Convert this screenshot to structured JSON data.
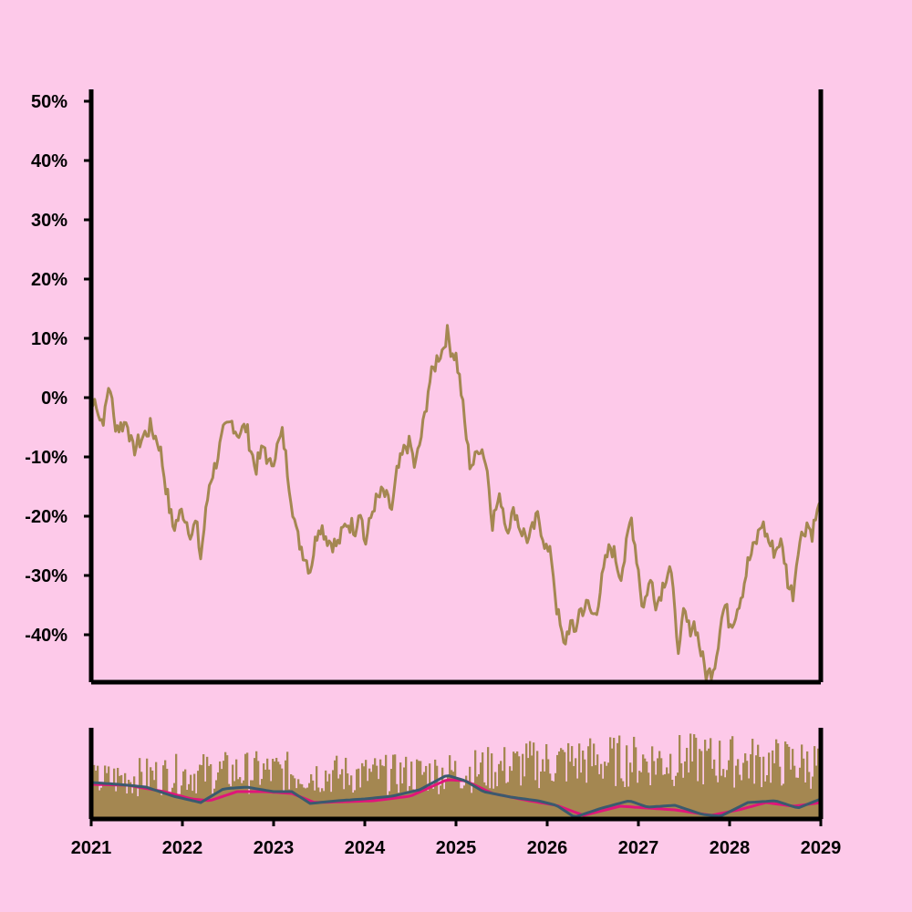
{
  "colors": {
    "background": "#fdc9e9",
    "price_line": "#a48751",
    "volume_bars": "#a48751",
    "ma_fast": "#3a5a6e",
    "ma_slow": "#e0157a",
    "axis": "#000000"
  },
  "chart_data": [
    {
      "type": "line",
      "panel": "main",
      "title": "",
      "xlabel": "",
      "ylabel": "",
      "x_ticks": [
        "2021",
        "2022",
        "2023",
        "2024",
        "2025",
        "2026",
        "2027",
        "2028",
        "2029"
      ],
      "y_ticks": [
        "50%",
        "40%",
        "30%",
        "20%",
        "10%",
        "0%",
        "-10%",
        "-20%",
        "-30%",
        "-40%"
      ],
      "xlim": [
        2021,
        2029
      ],
      "ylim": [
        -48,
        52
      ],
      "series": [
        {
          "values": [
            {
              "x": 2021.0,
              "y": -2
            },
            {
              "x": 2021.05,
              "y": 0
            },
            {
              "x": 2021.1,
              "y": -4
            },
            {
              "x": 2021.15,
              "y": -3
            },
            {
              "x": 2021.2,
              "y": 3
            },
            {
              "x": 2021.25,
              "y": -4
            },
            {
              "x": 2021.3,
              "y": -5
            },
            {
              "x": 2021.4,
              "y": -4
            },
            {
              "x": 2021.45,
              "y": -9
            },
            {
              "x": 2021.55,
              "y": -7
            },
            {
              "x": 2021.65,
              "y": -5
            },
            {
              "x": 2021.75,
              "y": -8
            },
            {
              "x": 2021.85,
              "y": -18
            },
            {
              "x": 2021.9,
              "y": -22
            },
            {
              "x": 2022.0,
              "y": -19
            },
            {
              "x": 2022.1,
              "y": -23
            },
            {
              "x": 2022.15,
              "y": -21
            },
            {
              "x": 2022.2,
              "y": -27
            },
            {
              "x": 2022.3,
              "y": -14
            },
            {
              "x": 2022.35,
              "y": -12
            },
            {
              "x": 2022.45,
              "y": -6
            },
            {
              "x": 2022.55,
              "y": -4
            },
            {
              "x": 2022.6,
              "y": -6
            },
            {
              "x": 2022.7,
              "y": -5
            },
            {
              "x": 2022.8,
              "y": -12
            },
            {
              "x": 2022.9,
              "y": -8
            },
            {
              "x": 2022.95,
              "y": -12
            },
            {
              "x": 2023.05,
              "y": -8
            },
            {
              "x": 2023.1,
              "y": -6
            },
            {
              "x": 2023.15,
              "y": -12
            },
            {
              "x": 2023.25,
              "y": -23
            },
            {
              "x": 2023.3,
              "y": -25
            },
            {
              "x": 2023.4,
              "y": -29
            },
            {
              "x": 2023.5,
              "y": -21
            },
            {
              "x": 2023.6,
              "y": -24
            },
            {
              "x": 2023.7,
              "y": -25
            },
            {
              "x": 2023.8,
              "y": -21
            },
            {
              "x": 2023.9,
              "y": -22
            },
            {
              "x": 2023.95,
              "y": -18
            },
            {
              "x": 2024.0,
              "y": -25
            },
            {
              "x": 2024.1,
              "y": -18
            },
            {
              "x": 2024.2,
              "y": -16
            },
            {
              "x": 2024.3,
              "y": -19
            },
            {
              "x": 2024.35,
              "y": -13
            },
            {
              "x": 2024.45,
              "y": -8
            },
            {
              "x": 2024.5,
              "y": -8
            },
            {
              "x": 2024.55,
              "y": -12
            },
            {
              "x": 2024.65,
              "y": -4
            },
            {
              "x": 2024.7,
              "y": 2
            },
            {
              "x": 2024.8,
              "y": 7
            },
            {
              "x": 2024.85,
              "y": 8
            },
            {
              "x": 2024.9,
              "y": 11
            },
            {
              "x": 2024.95,
              "y": 8
            },
            {
              "x": 2025.0,
              "y": 7
            },
            {
              "x": 2025.05,
              "y": 2
            },
            {
              "x": 2025.1,
              "y": -5
            },
            {
              "x": 2025.15,
              "y": -11
            },
            {
              "x": 2025.2,
              "y": -11
            },
            {
              "x": 2025.25,
              "y": -8
            },
            {
              "x": 2025.3,
              "y": -9
            },
            {
              "x": 2025.35,
              "y": -13
            },
            {
              "x": 2025.4,
              "y": -21
            },
            {
              "x": 2025.45,
              "y": -18
            },
            {
              "x": 2025.5,
              "y": -17
            },
            {
              "x": 2025.55,
              "y": -22
            },
            {
              "x": 2025.65,
              "y": -19
            },
            {
              "x": 2025.7,
              "y": -22
            },
            {
              "x": 2025.8,
              "y": -24
            },
            {
              "x": 2025.9,
              "y": -20
            },
            {
              "x": 2026.0,
              "y": -26
            },
            {
              "x": 2026.05,
              "y": -27
            },
            {
              "x": 2026.1,
              "y": -35
            },
            {
              "x": 2026.18,
              "y": -42
            },
            {
              "x": 2026.25,
              "y": -38
            },
            {
              "x": 2026.3,
              "y": -40
            },
            {
              "x": 2026.35,
              "y": -36
            },
            {
              "x": 2026.45,
              "y": -35
            },
            {
              "x": 2026.5,
              "y": -37
            },
            {
              "x": 2026.55,
              "y": -35
            },
            {
              "x": 2026.65,
              "y": -27
            },
            {
              "x": 2026.7,
              "y": -25
            },
            {
              "x": 2026.75,
              "y": -27
            },
            {
              "x": 2026.8,
              "y": -30
            },
            {
              "x": 2026.85,
              "y": -27
            },
            {
              "x": 2026.92,
              "y": -20
            },
            {
              "x": 2027.0,
              "y": -29
            },
            {
              "x": 2027.05,
              "y": -36
            },
            {
              "x": 2027.1,
              "y": -32
            },
            {
              "x": 2027.15,
              "y": -31
            },
            {
              "x": 2027.2,
              "y": -35
            },
            {
              "x": 2027.3,
              "y": -30
            },
            {
              "x": 2027.35,
              "y": -28
            },
            {
              "x": 2027.4,
              "y": -37
            },
            {
              "x": 2027.45,
              "y": -43
            },
            {
              "x": 2027.5,
              "y": -36
            },
            {
              "x": 2027.55,
              "y": -39
            },
            {
              "x": 2027.62,
              "y": -38
            },
            {
              "x": 2027.7,
              "y": -44
            },
            {
              "x": 2027.75,
              "y": -47
            },
            {
              "x": 2027.8,
              "y": -46
            },
            {
              "x": 2027.85,
              "y": -44
            },
            {
              "x": 2027.9,
              "y": -38
            },
            {
              "x": 2027.95,
              "y": -35
            },
            {
              "x": 2028.0,
              "y": -38
            },
            {
              "x": 2028.05,
              "y": -37
            },
            {
              "x": 2028.15,
              "y": -32
            },
            {
              "x": 2028.2,
              "y": -28
            },
            {
              "x": 2028.3,
              "y": -24
            },
            {
              "x": 2028.35,
              "y": -21
            },
            {
              "x": 2028.4,
              "y": -23
            },
            {
              "x": 2028.45,
              "y": -25
            },
            {
              "x": 2028.5,
              "y": -26
            },
            {
              "x": 2028.55,
              "y": -24
            },
            {
              "x": 2028.6,
              "y": -27
            },
            {
              "x": 2028.65,
              "y": -32
            },
            {
              "x": 2028.7,
              "y": -33
            },
            {
              "x": 2028.75,
              "y": -25
            },
            {
              "x": 2028.8,
              "y": -23
            },
            {
              "x": 2028.85,
              "y": -21
            },
            {
              "x": 2028.9,
              "y": -23
            },
            {
              "x": 2028.95,
              "y": -20
            },
            {
              "x": 2029.0,
              "y": -18
            }
          ]
        }
      ]
    },
    {
      "type": "bar",
      "panel": "volume",
      "title": "",
      "xlabel": "",
      "ylabel": "",
      "x_ticks": [
        "2021",
        "2022",
        "2023",
        "2024",
        "2025",
        "2026",
        "2027",
        "2028",
        "2029"
      ],
      "xlim": [
        2021,
        2029
      ],
      "ylim": [
        0,
        1
      ],
      "volume_levels": [
        {
          "x": 2021.0,
          "y": 0.4
        },
        {
          "x": 2021.5,
          "y": 0.45
        },
        {
          "x": 2022.0,
          "y": 0.48
        },
        {
          "x": 2022.5,
          "y": 0.5
        },
        {
          "x": 2023.0,
          "y": 0.5
        },
        {
          "x": 2023.5,
          "y": 0.48
        },
        {
          "x": 2024.0,
          "y": 0.47
        },
        {
          "x": 2024.5,
          "y": 0.48
        },
        {
          "x": 2025.0,
          "y": 0.5
        },
        {
          "x": 2025.5,
          "y": 0.55
        },
        {
          "x": 2026.0,
          "y": 0.6
        },
        {
          "x": 2026.5,
          "y": 0.62
        },
        {
          "x": 2027.0,
          "y": 0.62
        },
        {
          "x": 2027.5,
          "y": 0.63
        },
        {
          "x": 2028.0,
          "y": 0.62
        },
        {
          "x": 2028.5,
          "y": 0.6
        },
        {
          "x": 2029.0,
          "y": 0.58
        }
      ],
      "series": [
        {
          "values": [
            {
              "x": 2021.0,
              "y": 0.4
            },
            {
              "x": 2021.3,
              "y": 0.38
            },
            {
              "x": 2021.6,
              "y": 0.35
            },
            {
              "x": 2021.9,
              "y": 0.25
            },
            {
              "x": 2022.2,
              "y": 0.18
            },
            {
              "x": 2022.45,
              "y": 0.33
            },
            {
              "x": 2022.7,
              "y": 0.35
            },
            {
              "x": 2023.0,
              "y": 0.3
            },
            {
              "x": 2023.2,
              "y": 0.3
            },
            {
              "x": 2023.4,
              "y": 0.17
            },
            {
              "x": 2023.7,
              "y": 0.2
            },
            {
              "x": 2024.0,
              "y": 0.22
            },
            {
              "x": 2024.3,
              "y": 0.25
            },
            {
              "x": 2024.6,
              "y": 0.32
            },
            {
              "x": 2024.9,
              "y": 0.48
            },
            {
              "x": 2025.1,
              "y": 0.42
            },
            {
              "x": 2025.3,
              "y": 0.3
            },
            {
              "x": 2025.6,
              "y": 0.24
            },
            {
              "x": 2025.9,
              "y": 0.2
            },
            {
              "x": 2026.1,
              "y": 0.15
            },
            {
              "x": 2026.3,
              "y": 0.02
            },
            {
              "x": 2026.6,
              "y": 0.12
            },
            {
              "x": 2026.9,
              "y": 0.2
            },
            {
              "x": 2027.1,
              "y": 0.13
            },
            {
              "x": 2027.4,
              "y": 0.15
            },
            {
              "x": 2027.7,
              "y": 0.05
            },
            {
              "x": 2027.9,
              "y": 0.03
            },
            {
              "x": 2028.2,
              "y": 0.18
            },
            {
              "x": 2028.5,
              "y": 0.2
            },
            {
              "x": 2028.75,
              "y": 0.12
            },
            {
              "x": 2029.0,
              "y": 0.22
            }
          ]
        },
        {
          "values": [
            {
              "x": 2021.0,
              "y": 0.38
            },
            {
              "x": 2021.4,
              "y": 0.37
            },
            {
              "x": 2021.8,
              "y": 0.3
            },
            {
              "x": 2022.1,
              "y": 0.22
            },
            {
              "x": 2022.3,
              "y": 0.2
            },
            {
              "x": 2022.6,
              "y": 0.3
            },
            {
              "x": 2022.9,
              "y": 0.3
            },
            {
              "x": 2023.2,
              "y": 0.28
            },
            {
              "x": 2023.45,
              "y": 0.18
            },
            {
              "x": 2023.8,
              "y": 0.19
            },
            {
              "x": 2024.1,
              "y": 0.2
            },
            {
              "x": 2024.5,
              "y": 0.25
            },
            {
              "x": 2024.9,
              "y": 0.43
            },
            {
              "x": 2025.1,
              "y": 0.42
            },
            {
              "x": 2025.4,
              "y": 0.28
            },
            {
              "x": 2025.8,
              "y": 0.2
            },
            {
              "x": 2026.1,
              "y": 0.15
            },
            {
              "x": 2026.4,
              "y": 0.04
            },
            {
              "x": 2026.8,
              "y": 0.14
            },
            {
              "x": 2027.1,
              "y": 0.12
            },
            {
              "x": 2027.4,
              "y": 0.1
            },
            {
              "x": 2027.8,
              "y": 0.04
            },
            {
              "x": 2028.1,
              "y": 0.1
            },
            {
              "x": 2028.4,
              "y": 0.18
            },
            {
              "x": 2028.7,
              "y": 0.14
            },
            {
              "x": 2029.0,
              "y": 0.18
            }
          ]
        }
      ]
    }
  ]
}
